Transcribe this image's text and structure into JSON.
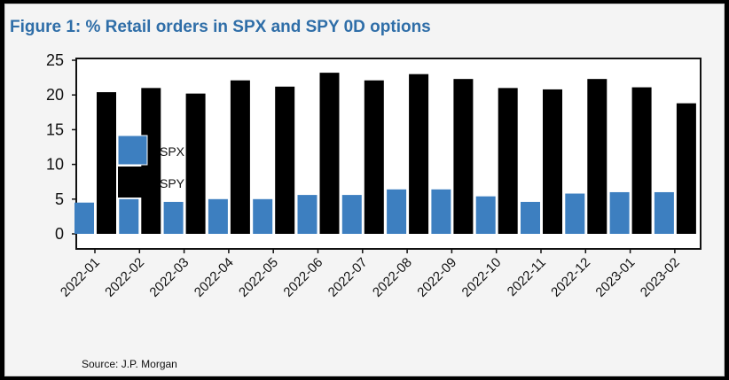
{
  "title": "Figure 1: % Retail orders in SPX and SPY 0D options",
  "source": "Source: J.P. Morgan",
  "chart_data": {
    "type": "bar",
    "title": "Figure 1: % Retail orders in SPX and SPY 0D options",
    "xlabel": "",
    "ylabel": "",
    "ylim": [
      0,
      25
    ],
    "yticks": [
      0,
      5,
      10,
      15,
      20,
      25
    ],
    "categories": [
      "2022-01",
      "2022-02",
      "2022-03",
      "2022-04",
      "2022-05",
      "2022-06",
      "2022-07",
      "2022-08",
      "2022-09",
      "2022-10",
      "2022-11",
      "2022-12",
      "2023-01",
      "2023-02"
    ],
    "series": [
      {
        "name": "SPX",
        "color": "#3d7fc0",
        "values": [
          4.5,
          5.0,
          4.6,
          5.0,
          5.0,
          5.6,
          5.6,
          6.4,
          6.4,
          5.4,
          4.6,
          5.8,
          6.0,
          6.0
        ]
      },
      {
        "name": "SPY",
        "color": "#000000",
        "values": [
          20.4,
          21.0,
          20.2,
          22.1,
          21.2,
          23.2,
          22.1,
          23.0,
          22.3,
          21.0,
          20.8,
          22.3,
          21.1,
          18.8
        ]
      }
    ],
    "legend": "left-middle",
    "grid": false
  }
}
